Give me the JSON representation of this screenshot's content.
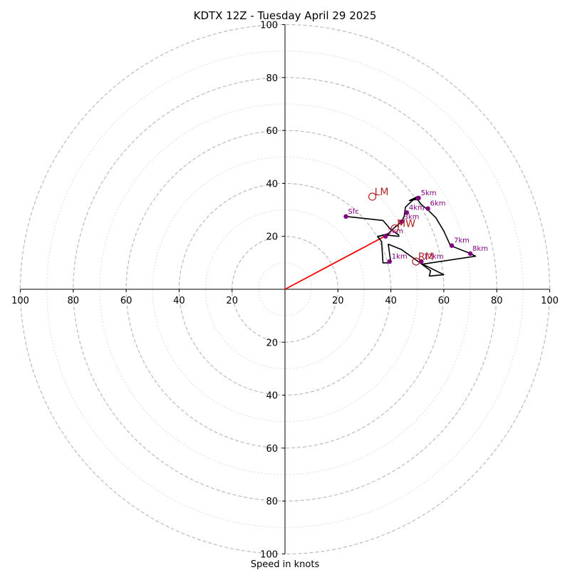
{
  "chart_data": {
    "type": "scatter",
    "title": "KDTX 12Z - Tuesday April 29 2025",
    "xlabel": "Speed in knots",
    "ylabel": "",
    "xlim": [
      -100,
      100
    ],
    "ylim": [
      -100,
      100
    ],
    "x_tick_labels": [
      {
        "v": -100,
        "label": "100"
      },
      {
        "v": -80,
        "label": "80"
      },
      {
        "v": -60,
        "label": "60"
      },
      {
        "v": -40,
        "label": "40"
      },
      {
        "v": -20,
        "label": "20"
      },
      {
        "v": 20,
        "label": "20"
      },
      {
        "v": 40,
        "label": "40"
      },
      {
        "v": 60,
        "label": "60"
      },
      {
        "v": 80,
        "label": "80"
      },
      {
        "v": 100,
        "label": "100"
      }
    ],
    "y_tick_labels": [
      {
        "v": 100,
        "label": "100"
      },
      {
        "v": 80,
        "label": "80"
      },
      {
        "v": 60,
        "label": "60"
      },
      {
        "v": 40,
        "label": "40"
      },
      {
        "v": 20,
        "label": "20"
      },
      {
        "v": -20,
        "label": "20"
      },
      {
        "v": -40,
        "label": "40"
      },
      {
        "v": -60,
        "label": "60"
      },
      {
        "v": -80,
        "label": "80"
      },
      {
        "v": -100,
        "label": "100"
      }
    ],
    "rings_major": [
      20,
      40,
      60,
      80,
      100
    ],
    "rings_minor": [
      10,
      30,
      50,
      70,
      90
    ],
    "grid": true,
    "colors": {
      "trace": "#000000",
      "height_marker": "#800080",
      "motion": "#b22222",
      "shear_vector": "#ff0000",
      "ring_major": "#bbbbbb",
      "ring_minor": "#d3d3d3"
    },
    "hodograph_trace": [
      [
        23,
        27.5
      ],
      [
        37,
        26
      ],
      [
        40,
        22.5
      ],
      [
        43,
        20.5
      ],
      [
        43,
        20
      ],
      [
        38,
        20.5
      ],
      [
        35,
        20
      ],
      [
        36.5,
        18
      ],
      [
        37,
        10
      ],
      [
        40,
        10
      ],
      [
        39,
        17
      ],
      [
        44,
        15
      ],
      [
        51,
        10
      ],
      [
        55,
        7
      ],
      [
        54.5,
        5
      ],
      [
        60,
        5.5
      ],
      [
        52,
        9.5
      ],
      [
        72,
        12.5
      ],
      [
        70,
        13.5
      ],
      [
        62.5,
        16.5
      ],
      [
        60,
        22
      ],
      [
        57,
        27
      ],
      [
        54,
        30
      ],
      [
        51.5,
        32
      ],
      [
        50,
        34
      ],
      [
        47,
        33.5
      ],
      [
        50,
        35
      ],
      [
        47.5,
        33
      ],
      [
        45.5,
        31
      ],
      [
        45,
        27.5
      ],
      [
        44,
        25.5
      ],
      [
        41,
        23
      ],
      [
        39,
        21
      ],
      [
        35.5,
        20
      ],
      [
        37,
        20.5
      ]
    ],
    "height_markers": [
      {
        "label": "Sfc",
        "u": 23,
        "v": 27.5
      },
      {
        "label": "1km",
        "u": 39.5,
        "v": 10.5
      },
      {
        "label": "2km",
        "u": 38,
        "v": 20
      },
      {
        "label": "3km",
        "u": 44,
        "v": 25.5
      },
      {
        "label": "4km",
        "u": 46,
        "v": 29
      },
      {
        "label": "5km",
        "u": 50.5,
        "v": 34.5
      },
      {
        "label": "6km",
        "u": 54,
        "v": 30.5
      },
      {
        "label": "7km",
        "u": 63,
        "v": 16.5
      },
      {
        "label": "8km",
        "u": 70,
        "v": 13.5
      },
      {
        "label": "12km",
        "u": 51.5,
        "v": 10.5
      }
    ],
    "storm_motions": [
      {
        "label": "LM",
        "u": 33,
        "v": 35
      },
      {
        "label": "MW",
        "u": 41.5,
        "v": 23
      },
      {
        "label": "RM",
        "u": 49.5,
        "v": 10.5
      }
    ],
    "shear_vector": {
      "u0": 0,
      "v0": 0,
      "u1": 39.5,
      "v1": 21
    }
  }
}
